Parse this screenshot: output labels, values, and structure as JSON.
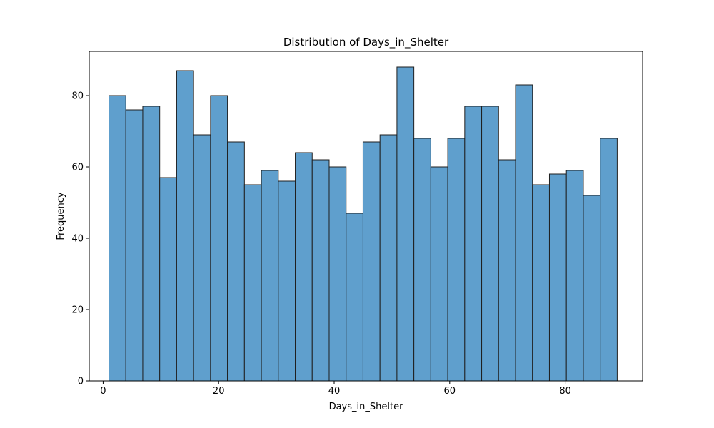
{
  "chart_data": {
    "type": "bar",
    "title": "Distribution of Days_in_Shelter",
    "xlabel": "Days_in_Shelter",
    "ylabel": "Frequency",
    "bins_start": 1,
    "bin_width": 2.9333,
    "values": [
      80,
      76,
      77,
      57,
      87,
      69,
      80,
      67,
      55,
      59,
      56,
      64,
      62,
      60,
      47,
      67,
      69,
      88,
      68,
      60,
      68,
      77,
      77,
      62,
      83,
      55,
      58,
      59,
      52,
      68
    ],
    "xlim": [
      -2.4,
      93.4
    ],
    "ylim": [
      0,
      92.4
    ],
    "xticks": [
      0,
      20,
      40,
      60,
      80
    ],
    "yticks": [
      0,
      20,
      40,
      60,
      80
    ],
    "grid": false,
    "bar_color": "#5f9fcd",
    "edge_color": "#1f1f1f"
  }
}
